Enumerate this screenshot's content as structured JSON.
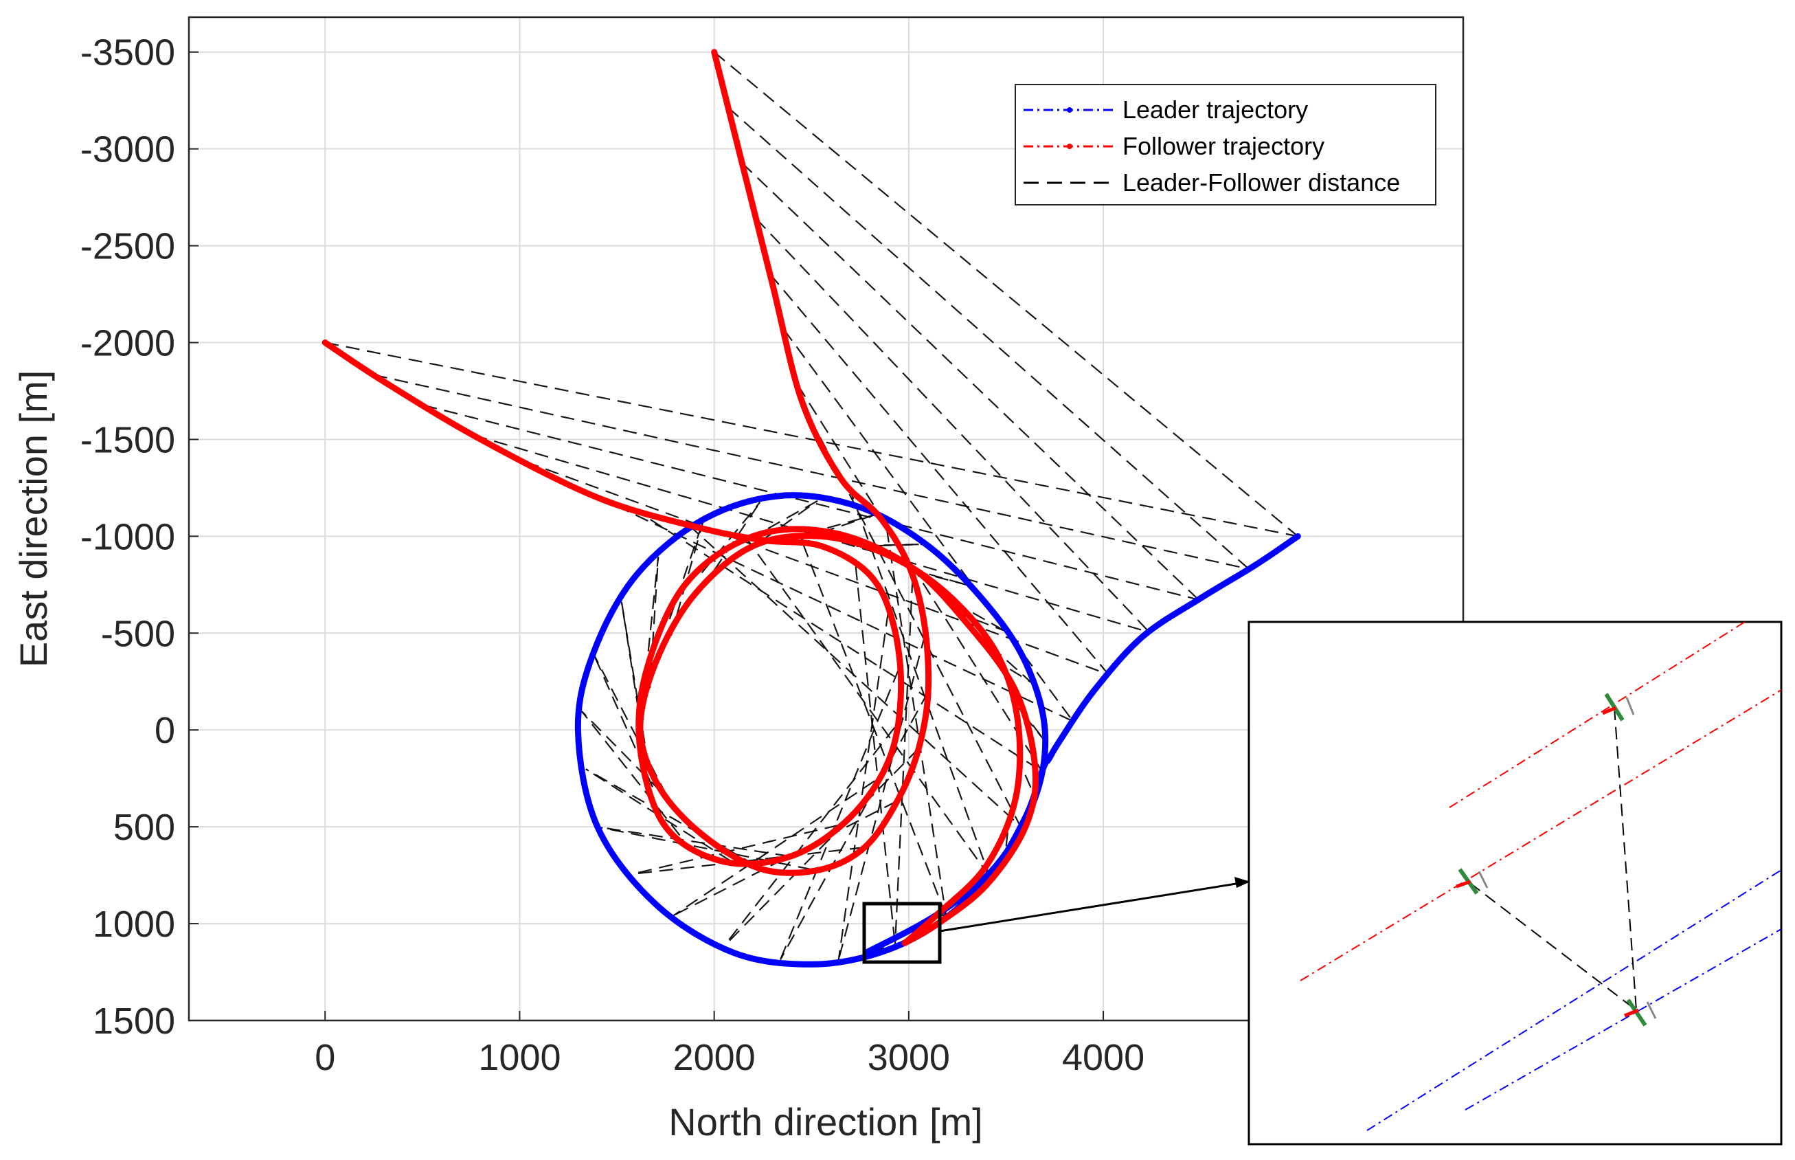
{
  "chart_data": {
    "type": "line",
    "title": "",
    "xlabel": "North direction [m]",
    "ylabel": "East direction [m]",
    "xlim": [
      -700,
      5850
    ],
    "ylim": [
      -3680,
      1500
    ],
    "y_reversed": true,
    "x_ticks": [
      0,
      1000,
      2000,
      3000,
      4000
    ],
    "y_ticks": [
      -3500,
      -3000,
      -2500,
      -2000,
      -1500,
      -1000,
      -500,
      0,
      500,
      1000,
      1500
    ],
    "x_tick_labels": [
      "0",
      "1000",
      "2000",
      "3000",
      "4000"
    ],
    "y_tick_labels": [
      "-3500",
      "-3000",
      "-2500",
      "-2000",
      "-1500",
      "-1000",
      "-500",
      "0",
      "500",
      "1000",
      "1500"
    ],
    "grid": true,
    "legend_position": "top-right",
    "legend": [
      "Leader trajectory",
      "Follower trajectory",
      "Leader-Follower distance"
    ],
    "colors": {
      "leader": "#0000ff",
      "follower": "#ff0000",
      "distance": "#000000",
      "aircraft_marker": "#2e8b3a"
    },
    "series": [
      {
        "name": "Leader trajectory",
        "style": "dash-dot",
        "x": [
          5000,
          4780,
          4500,
          4200,
          3950,
          3780,
          3720,
          3690,
          3600,
          3420,
          3150,
          2850,
          2500,
          2100,
          1700,
          1400,
          1300,
          1380,
          1600,
          1950,
          2350,
          2750,
          3100,
          3400,
          3600,
          3700,
          3650,
          3450,
          3150,
          2780
        ],
        "y": [
          -1000,
          -850,
          -680,
          -480,
          -200,
          50,
          150,
          200,
          450,
          750,
          1000,
          1150,
          1210,
          1150,
          900,
          500,
          0,
          -400,
          -800,
          -1090,
          -1210,
          -1150,
          -950,
          -650,
          -350,
          0,
          350,
          700,
          950,
          1150
        ]
      },
      {
        "name": "Follower trajectory",
        "style": "dash-dot",
        "x": [
          0,
          300,
          800,
          1400,
          1900,
          2250,
          2550,
          2800,
          2920,
          2960,
          2900,
          2700,
          2400,
          2050,
          1750,
          1620,
          1650,
          1850,
          2200,
          2600,
          3000,
          3300,
          3550,
          3650,
          3600,
          3400,
          3150,
          2980
        ],
        "y": [
          -2000,
          -1800,
          -1500,
          -1200,
          -1050,
          -980,
          -950,
          -800,
          -550,
          -200,
          150,
          450,
          650,
          680,
          500,
          100,
          -300,
          -750,
          -1000,
          -1020,
          -850,
          -550,
          -200,
          200,
          500,
          800,
          1000,
          1100
        ]
      },
      {
        "name": "Follower trajectory",
        "style": "dash-dot",
        "x": [
          2000,
          2150,
          2300,
          2450,
          2650,
          2850,
          3000,
          3080,
          3100,
          3050,
          2950,
          2780,
          2550,
          2250,
          1950,
          1720,
          1620,
          1700,
          1900,
          2200,
          2550,
          2900,
          3200,
          3450,
          3560,
          3550,
          3400,
          3150,
          2980
        ],
        "y": [
          -3500,
          -2900,
          -2300,
          -1700,
          -1300,
          -1100,
          -850,
          -550,
          -200,
          100,
          350,
          600,
          720,
          720,
          550,
          300,
          0,
          -350,
          -700,
          -950,
          -1000,
          -900,
          -700,
          -400,
          -50,
          350,
          700,
          950,
          1100
        ]
      }
    ],
    "inset": {
      "zoom_window_x": [
        2800,
        3200
      ],
      "zoom_window_y": [
        900,
        1200
      ],
      "leader_segments": 2,
      "follower_segments": 2
    }
  }
}
